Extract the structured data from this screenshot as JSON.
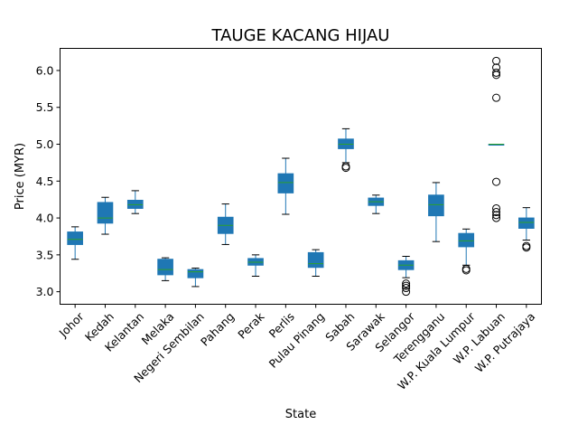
{
  "chart_data": {
    "type": "boxplot",
    "title": "TAUGE KACANG HIJAU",
    "xlabel": "State",
    "ylabel": "Price (MYR)",
    "ylim": [
      2.83,
      6.3
    ],
    "yticks": [
      "3.0",
      "3.5",
      "4.0",
      "4.5",
      "5.0",
      "5.5",
      "6.0"
    ],
    "box_color": "#1f77b4",
    "median_color": "#2ca02c",
    "grid": false,
    "categories": [
      "Johor",
      "Kedah",
      "Kelantan",
      "Melaka",
      "Negeri Sembilan",
      "Pahang",
      "Perak",
      "Perlis",
      "Pulau Pinang",
      "Sabah",
      "Sarawak",
      "Selangor",
      "Terengganu",
      "W.P. Kuala Lumpur",
      "W.P. Labuan",
      "W.P. Putrajaya"
    ],
    "boxes": [
      {
        "whisker_low": 3.44,
        "q1": 3.64,
        "median": 3.71,
        "q3": 3.81,
        "whisker_high": 3.88,
        "outliers": []
      },
      {
        "whisker_low": 3.78,
        "q1": 3.93,
        "median": 4.0,
        "q3": 4.21,
        "whisker_high": 4.28,
        "outliers": []
      },
      {
        "whisker_low": 4.06,
        "q1": 4.13,
        "median": 4.18,
        "q3": 4.24,
        "whisker_high": 4.37,
        "outliers": []
      },
      {
        "whisker_low": 3.15,
        "q1": 3.23,
        "median": 3.3,
        "q3": 3.44,
        "whisker_high": 3.46,
        "outliers": []
      },
      {
        "whisker_low": 3.07,
        "q1": 3.19,
        "median": 3.27,
        "q3": 3.3,
        "whisker_high": 3.32,
        "outliers": []
      },
      {
        "whisker_low": 3.64,
        "q1": 3.79,
        "median": 3.9,
        "q3": 4.01,
        "whisker_high": 4.19,
        "outliers": []
      },
      {
        "whisker_low": 3.21,
        "q1": 3.36,
        "median": 3.4,
        "q3": 3.45,
        "whisker_high": 3.5,
        "outliers": []
      },
      {
        "whisker_low": 4.05,
        "q1": 4.34,
        "median": 4.48,
        "q3": 4.6,
        "whisker_high": 4.81,
        "outliers": []
      },
      {
        "whisker_low": 3.21,
        "q1": 3.33,
        "median": 3.38,
        "q3": 3.53,
        "whisker_high": 3.57,
        "outliers": []
      },
      {
        "whisker_low": 4.75,
        "q1": 4.94,
        "median": 5.0,
        "q3": 5.07,
        "whisker_high": 5.21,
        "outliers": [
          4.7,
          4.68
        ]
      },
      {
        "whisker_low": 4.06,
        "q1": 4.17,
        "median": 4.22,
        "q3": 4.27,
        "whisker_high": 4.31,
        "outliers": []
      },
      {
        "whisker_low": 3.19,
        "q1": 3.3,
        "median": 3.36,
        "q3": 3.42,
        "whisker_high": 3.48,
        "outliers": [
          3.11,
          3.08,
          3.05,
          3.0
        ]
      },
      {
        "whisker_low": 3.68,
        "q1": 4.03,
        "median": 4.18,
        "q3": 4.31,
        "whisker_high": 4.48,
        "outliers": []
      },
      {
        "whisker_low": 3.36,
        "q1": 3.61,
        "median": 3.69,
        "q3": 3.79,
        "whisker_high": 3.85,
        "outliers": [
          3.31,
          3.29
        ]
      },
      {
        "whisker_low": 4.99,
        "q1": 4.99,
        "median": 5.0,
        "q3": 5.0,
        "whisker_high": 5.0,
        "outliers": [
          6.13,
          6.04,
          5.97,
          5.94,
          5.63,
          4.49,
          4.13,
          4.08,
          4.04,
          4.0
        ]
      },
      {
        "whisker_low": 3.7,
        "q1": 3.86,
        "median": 3.94,
        "q3": 4.0,
        "whisker_high": 4.14,
        "outliers": [
          3.62,
          3.6
        ]
      }
    ]
  }
}
